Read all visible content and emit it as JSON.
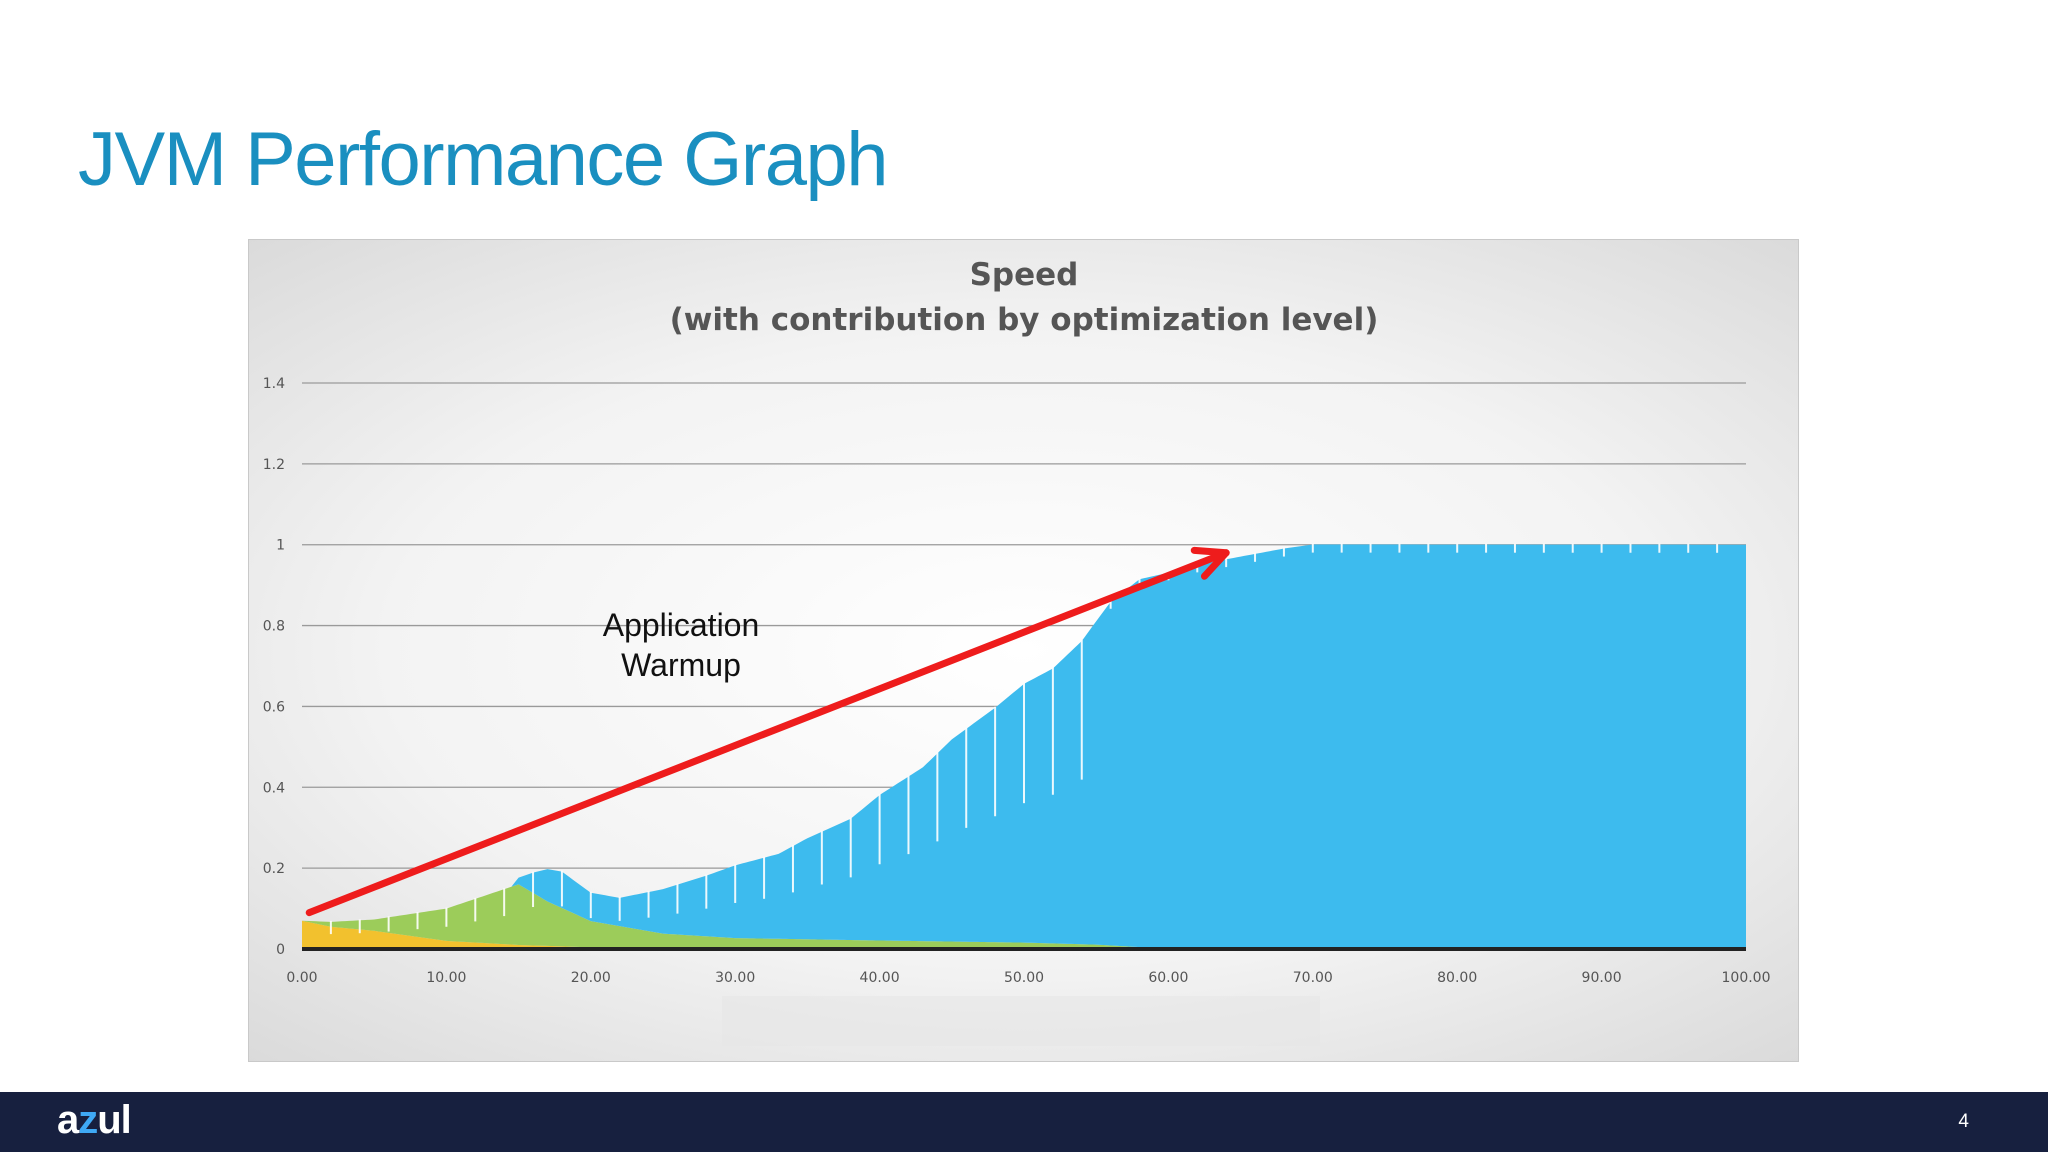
{
  "slide": {
    "title": "JVM Performance Graph",
    "page_number": "4",
    "logo": {
      "part1": "a",
      "part2": "z",
      "part3": "ul"
    }
  },
  "chart_data": {
    "type": "area",
    "title": "Speed",
    "subtitle": "(with contribution by optimization level)",
    "xlabel": "",
    "ylabel": "",
    "xlim": [
      0,
      100
    ],
    "ylim": [
      0,
      1.4
    ],
    "x_ticks": [
      "0.00",
      "10.00",
      "20.00",
      "30.00",
      "40.00",
      "50.00",
      "60.00",
      "70.00",
      "80.00",
      "90.00",
      "100.00"
    ],
    "y_ticks": [
      "0",
      "0.2",
      "0.4",
      "0.6",
      "0.8",
      "1",
      "1.2",
      "1.4"
    ],
    "grid": true,
    "legend": "none",
    "stacked": true,
    "series": [
      {
        "color": "#f2c12e",
        "points": [
          [
            0,
            0.07
          ],
          [
            2,
            0.055
          ],
          [
            5,
            0.045
          ],
          [
            10,
            0.02
          ],
          [
            15,
            0.01
          ],
          [
            20,
            0.004
          ],
          [
            30,
            0.002
          ],
          [
            40,
            0.001
          ],
          [
            100,
            0.0
          ]
        ]
      },
      {
        "color": "#9ccc5a",
        "points": [
          [
            0,
            0.0
          ],
          [
            2,
            0.012
          ],
          [
            5,
            0.028
          ],
          [
            10,
            0.08
          ],
          [
            15,
            0.15
          ],
          [
            17,
            0.11
          ],
          [
            20,
            0.065
          ],
          [
            25,
            0.035
          ],
          [
            30,
            0.025
          ],
          [
            40,
            0.02
          ],
          [
            50,
            0.015
          ],
          [
            55,
            0.01
          ],
          [
            58,
            0.004
          ],
          [
            60,
            0.0
          ],
          [
            100,
            0.0
          ]
        ]
      },
      {
        "color": "#3dbbee",
        "points": [
          [
            0,
            0.0
          ],
          [
            14.5,
            0.0
          ],
          [
            16,
            0.05
          ],
          [
            17,
            0.08
          ],
          [
            18,
            0.09
          ],
          [
            20,
            0.07
          ],
          [
            22,
            0.07
          ],
          [
            25,
            0.11
          ],
          [
            28,
            0.15
          ],
          [
            30,
            0.18
          ],
          [
            33,
            0.21
          ],
          [
            35,
            0.25
          ],
          [
            38,
            0.3
          ],
          [
            40,
            0.36
          ],
          [
            43,
            0.43
          ],
          [
            45,
            0.5
          ],
          [
            48,
            0.58
          ],
          [
            50,
            0.64
          ],
          [
            52,
            0.68
          ],
          [
            54,
            0.75
          ],
          [
            56,
            0.85
          ],
          [
            58,
            0.91
          ],
          [
            60,
            0.93
          ],
          [
            62,
            0.95
          ],
          [
            65,
            0.97
          ],
          [
            68,
            0.99
          ],
          [
            70,
            1.0
          ],
          [
            100,
            1.0
          ]
        ]
      }
    ],
    "annotations": [
      {
        "text_line1": "Application",
        "text_line2": "Warmup",
        "arrow_from": [
          0.5,
          0.09
        ],
        "arrow_to": [
          64,
          0.98
        ],
        "arrow_color": "#ee1c1c"
      }
    ]
  }
}
